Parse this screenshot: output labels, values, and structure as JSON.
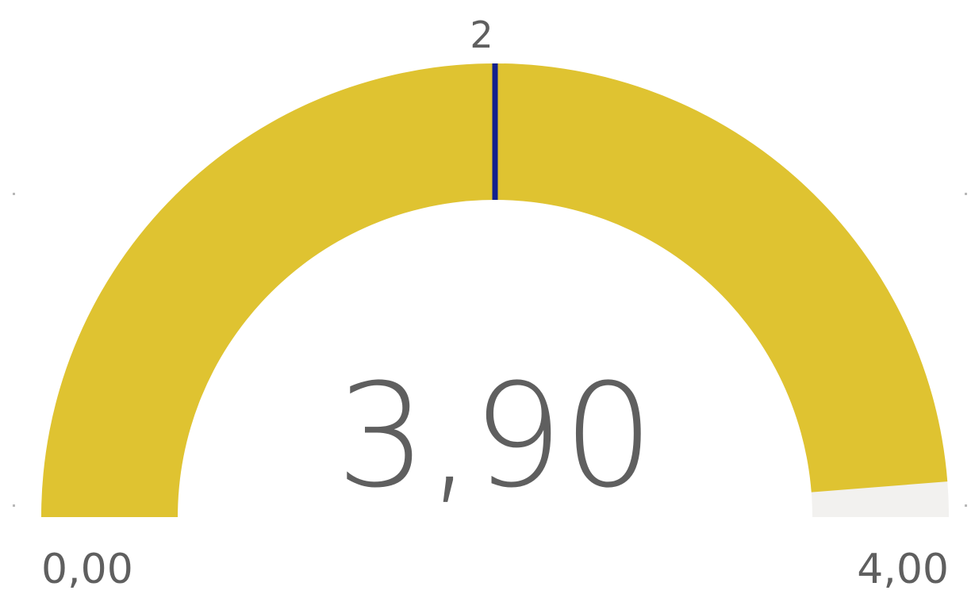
{
  "chart_data": {
    "type": "gauge",
    "value": 3.9,
    "min": 0,
    "max": 4,
    "target": 2,
    "value_label": "3,90",
    "min_label": "0,00",
    "max_label": "4,00",
    "target_label": "2",
    "colors": {
      "fill": "#dfc331",
      "track": "#f2f1ef",
      "target": "#13218d",
      "text": "#5f5f5f",
      "edge_marks": "#b8b8b8"
    }
  }
}
